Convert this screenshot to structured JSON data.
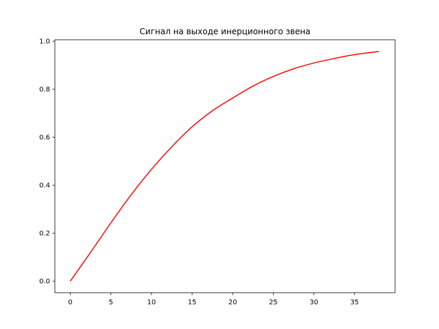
{
  "chart_data": {
    "type": "line",
    "title": "Сигнал на выходе инерционного звена",
    "xlabel": "",
    "ylabel": "",
    "xlim": [
      -1.9,
      40.0
    ],
    "ylim": [
      -0.048,
      1.006
    ],
    "xticks": [
      "0",
      "5",
      "10",
      "15",
      "20",
      "25",
      "30",
      "35"
    ],
    "yticks": [
      "0.0",
      "0.2",
      "0.4",
      "0.6",
      "0.8",
      "1.0"
    ],
    "grid": false,
    "series": [
      {
        "color": "#ff0000",
        "x": [
          0,
          2.5,
          5,
          7.5,
          10,
          12.5,
          15,
          17.5,
          20,
          22.5,
          25,
          27.5,
          30,
          32.5,
          35,
          38
        ],
        "y": [
          0,
          0.12,
          0.243,
          0.36,
          0.466,
          0.56,
          0.643,
          0.71,
          0.763,
          0.813,
          0.853,
          0.885,
          0.909,
          0.928,
          0.944,
          0.957
        ]
      }
    ]
  }
}
